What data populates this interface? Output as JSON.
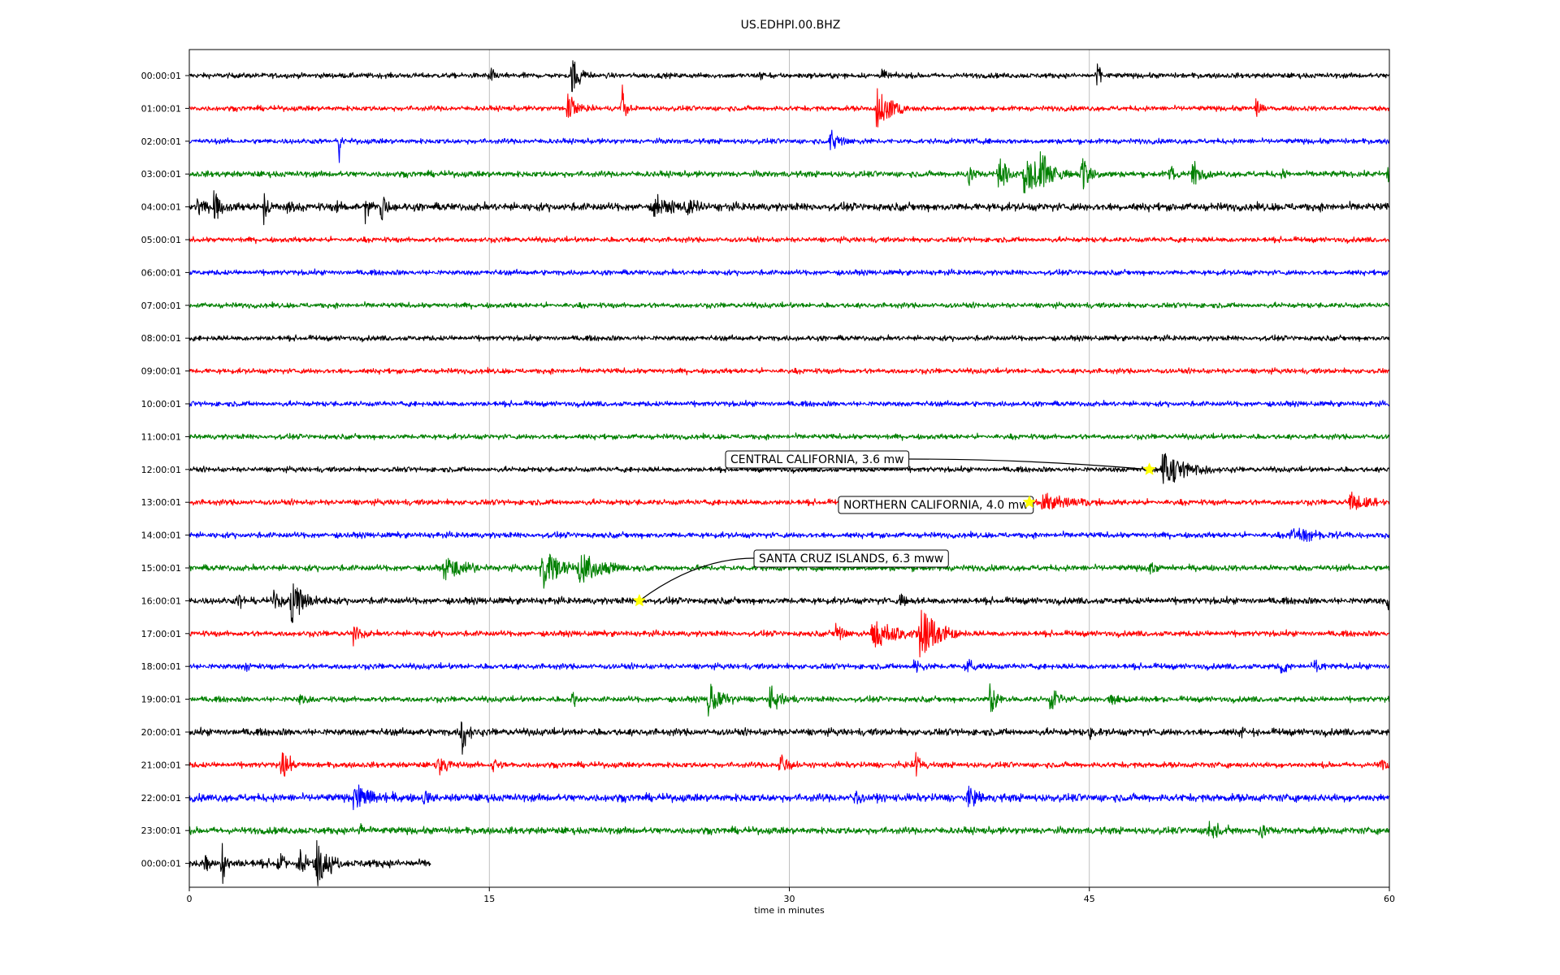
{
  "chart_data": {
    "type": "line",
    "title": "US.EDHPI.00.BHZ",
    "xlabel": "time in minutes",
    "ylabel": "",
    "xlim": [
      0,
      60
    ],
    "xticks": [
      0,
      15,
      30,
      45,
      60
    ],
    "xtick_labels": [
      "0",
      "15",
      "30",
      "45",
      "60"
    ],
    "grid": "vertical",
    "row_colors": [
      "#000000",
      "#ff0000",
      "#0000ff",
      "#008000"
    ],
    "rows": [
      {
        "label": "00:00:01",
        "end_minute": 60,
        "noise": 0.12,
        "events": [
          {
            "t": 15.0,
            "amp": 0.35,
            "dur": 0.2
          },
          {
            "t": 19.1,
            "amp": 0.8,
            "dur": 0.4
          },
          {
            "t": 28.5,
            "amp": 0.25,
            "dur": 0.3
          },
          {
            "t": 34.6,
            "amp": 0.4,
            "dur": 0.2
          },
          {
            "t": 45.4,
            "amp": 1.1,
            "dur": 0.1
          }
        ]
      },
      {
        "label": "01:00:01",
        "end_minute": 60,
        "noise": 0.12,
        "events": [
          {
            "t": 18.9,
            "amp": 0.9,
            "dur": 0.3
          },
          {
            "t": 21.6,
            "amp": 1.1,
            "dur": 0.2
          },
          {
            "t": 34.3,
            "amp": 0.8,
            "dur": 0.8
          },
          {
            "t": 53.3,
            "amp": 0.45,
            "dur": 0.3
          }
        ]
      },
      {
        "label": "02:00:01",
        "end_minute": 60,
        "noise": 0.12,
        "events": [
          {
            "t": 7.5,
            "amp": 0.9,
            "dur": 0.1
          },
          {
            "t": 32.0,
            "amp": 0.45,
            "dur": 0.6
          }
        ]
      },
      {
        "label": "03:00:01",
        "end_minute": 60,
        "noise": 0.14,
        "events": [
          {
            "t": 38.9,
            "amp": 0.6,
            "dur": 0.3
          },
          {
            "t": 40.4,
            "amp": 1.0,
            "dur": 0.4
          },
          {
            "t": 41.7,
            "amp": 0.9,
            "dur": 1.0
          },
          {
            "t": 42.5,
            "amp": 1.1,
            "dur": 0.3
          },
          {
            "t": 44.6,
            "amp": 0.8,
            "dur": 0.4
          },
          {
            "t": 49.0,
            "amp": 0.5,
            "dur": 0.3
          },
          {
            "t": 50.1,
            "amp": 0.65,
            "dur": 0.4
          },
          {
            "t": 54.6,
            "amp": 0.4,
            "dur": 0.2
          },
          {
            "t": 59.9,
            "amp": 0.5,
            "dur": 0.1
          }
        ]
      },
      {
        "label": "04:00:01",
        "end_minute": 60,
        "noise": 0.18,
        "events": [
          {
            "t": 0.4,
            "amp": 0.4,
            "dur": 0.3
          },
          {
            "t": 1.2,
            "amp": 0.8,
            "dur": 0.3
          },
          {
            "t": 3.7,
            "amp": 0.75,
            "dur": 0.2
          },
          {
            "t": 4.9,
            "amp": 0.45,
            "dur": 0.2
          },
          {
            "t": 7.4,
            "amp": 0.3,
            "dur": 0.2
          },
          {
            "t": 8.8,
            "amp": 0.8,
            "dur": 0.2
          },
          {
            "t": 9.6,
            "amp": 0.7,
            "dur": 0.2
          },
          {
            "t": 23.2,
            "amp": 0.45,
            "dur": 1.0
          },
          {
            "t": 24.8,
            "amp": 0.35,
            "dur": 0.6
          }
        ]
      },
      {
        "label": "05:00:01",
        "end_minute": 60,
        "noise": 0.12,
        "events": []
      },
      {
        "label": "06:00:01",
        "end_minute": 60,
        "noise": 0.12,
        "events": []
      },
      {
        "label": "07:00:01",
        "end_minute": 60,
        "noise": 0.12,
        "events": []
      },
      {
        "label": "08:00:01",
        "end_minute": 60,
        "noise": 0.12,
        "events": []
      },
      {
        "label": "09:00:01",
        "end_minute": 60,
        "noise": 0.12,
        "events": []
      },
      {
        "label": "10:00:01",
        "end_minute": 60,
        "noise": 0.12,
        "events": []
      },
      {
        "label": "11:00:01",
        "end_minute": 60,
        "noise": 0.12,
        "events": []
      },
      {
        "label": "12:00:01",
        "end_minute": 60,
        "noise": 0.12,
        "events": [
          {
            "t": 48.6,
            "amp": 0.75,
            "dur": 1.2
          }
        ]
      },
      {
        "label": "13:00:01",
        "end_minute": 60,
        "noise": 0.13,
        "events": [
          {
            "t": 42.6,
            "amp": 0.35,
            "dur": 1.6
          },
          {
            "t": 58.0,
            "amp": 0.4,
            "dur": 0.8
          }
        ]
      },
      {
        "label": "14:00:01",
        "end_minute": 60,
        "noise": 0.13,
        "events": [
          {
            "t": 55.0,
            "amp": 0.25,
            "dur": 2.0
          }
        ]
      },
      {
        "label": "15:00:01",
        "end_minute": 60,
        "noise": 0.14,
        "events": [
          {
            "t": 12.7,
            "amp": 0.5,
            "dur": 1.0
          },
          {
            "t": 17.6,
            "amp": 0.85,
            "dur": 0.8
          },
          {
            "t": 19.3,
            "amp": 0.7,
            "dur": 1.2
          },
          {
            "t": 48.0,
            "amp": 0.3,
            "dur": 0.3
          }
        ]
      },
      {
        "label": "16:00:01",
        "end_minute": 60,
        "noise": 0.15,
        "events": [
          {
            "t": 2.4,
            "amp": 0.45,
            "dur": 0.2
          },
          {
            "t": 4.2,
            "amp": 0.55,
            "dur": 0.3
          },
          {
            "t": 5.1,
            "amp": 0.9,
            "dur": 0.6
          },
          {
            "t": 35.5,
            "amp": 0.35,
            "dur": 0.3
          },
          {
            "t": 59.9,
            "amp": 0.5,
            "dur": 0.1
          }
        ]
      },
      {
        "label": "17:00:01",
        "end_minute": 60,
        "noise": 0.13,
        "events": [
          {
            "t": 8.2,
            "amp": 0.55,
            "dur": 0.3
          },
          {
            "t": 32.3,
            "amp": 0.5,
            "dur": 0.4
          },
          {
            "t": 34.1,
            "amp": 0.6,
            "dur": 1.2
          },
          {
            "t": 36.5,
            "amp": 1.1,
            "dur": 0.8
          }
        ]
      },
      {
        "label": "18:00:01",
        "end_minute": 60,
        "noise": 0.13,
        "events": [
          {
            "t": 2.8,
            "amp": 0.3,
            "dur": 0.2
          },
          {
            "t": 36.2,
            "amp": 0.4,
            "dur": 0.3
          },
          {
            "t": 38.8,
            "amp": 0.45,
            "dur": 0.4
          },
          {
            "t": 54.6,
            "amp": 0.4,
            "dur": 0.3
          },
          {
            "t": 56.2,
            "amp": 0.3,
            "dur": 0.5
          }
        ]
      },
      {
        "label": "19:00:01",
        "end_minute": 60,
        "noise": 0.13,
        "events": [
          {
            "t": 5.5,
            "amp": 0.3,
            "dur": 0.3
          },
          {
            "t": 19.1,
            "amp": 0.35,
            "dur": 0.3
          },
          {
            "t": 25.9,
            "amp": 0.8,
            "dur": 0.6
          },
          {
            "t": 29.0,
            "amp": 0.5,
            "dur": 0.6
          },
          {
            "t": 40.0,
            "amp": 0.65,
            "dur": 0.4
          },
          {
            "t": 43.0,
            "amp": 0.5,
            "dur": 0.4
          },
          {
            "t": 46.0,
            "amp": 0.2,
            "dur": 1.0
          }
        ]
      },
      {
        "label": "20:00:01",
        "end_minute": 60,
        "noise": 0.16,
        "events": [
          {
            "t": 13.6,
            "amp": 0.9,
            "dur": 0.3
          },
          {
            "t": 45.0,
            "amp": 0.35,
            "dur": 0.2
          },
          {
            "t": 52.6,
            "amp": 0.4,
            "dur": 0.2
          }
        ]
      },
      {
        "label": "21:00:01",
        "end_minute": 60,
        "noise": 0.13,
        "events": [
          {
            "t": 4.6,
            "amp": 0.6,
            "dur": 0.4
          },
          {
            "t": 12.4,
            "amp": 0.5,
            "dur": 0.5
          },
          {
            "t": 15.2,
            "amp": 0.3,
            "dur": 0.3
          },
          {
            "t": 29.5,
            "amp": 0.55,
            "dur": 0.4
          },
          {
            "t": 36.3,
            "amp": 0.55,
            "dur": 0.3
          },
          {
            "t": 59.5,
            "amp": 0.25,
            "dur": 0.6
          }
        ]
      },
      {
        "label": "22:00:01",
        "end_minute": 60,
        "noise": 0.18,
        "events": [
          {
            "t": 8.2,
            "amp": 0.55,
            "dur": 1.0
          },
          {
            "t": 11.7,
            "amp": 0.35,
            "dur": 0.3
          },
          {
            "t": 33.2,
            "amp": 0.75,
            "dur": 0.2
          },
          {
            "t": 38.9,
            "amp": 0.4,
            "dur": 0.5
          }
        ]
      },
      {
        "label": "23:00:01",
        "end_minute": 60,
        "noise": 0.16,
        "events": [
          {
            "t": 8.5,
            "amp": 0.3,
            "dur": 0.4
          },
          {
            "t": 50.9,
            "amp": 0.45,
            "dur": 0.6
          },
          {
            "t": 53.5,
            "amp": 0.4,
            "dur": 0.4
          }
        ]
      },
      {
        "label": "00:00:01",
        "end_minute": 12.1,
        "noise": 0.18,
        "events": [
          {
            "t": 0.8,
            "amp": 0.4,
            "dur": 0.2
          },
          {
            "t": 1.6,
            "amp": 1.1,
            "dur": 0.2
          },
          {
            "t": 4.4,
            "amp": 0.6,
            "dur": 0.3
          },
          {
            "t": 5.5,
            "amp": 0.55,
            "dur": 0.3
          },
          {
            "t": 6.3,
            "amp": 1.1,
            "dur": 0.4
          },
          {
            "t": 7.0,
            "amp": 0.45,
            "dur": 0.3
          }
        ]
      }
    ],
    "annotations": [
      {
        "text": "CENTRAL CALIFORNIA, 3.6 mw",
        "row": 12,
        "t": 48.0,
        "box_color": "#ffffff"
      },
      {
        "text": "NORTHERN CALIFORNIA, 4.0 mw",
        "row": 13,
        "t": 42.0,
        "box_color": "#ffffff"
      },
      {
        "text": "SANTA CRUZ ISLANDS, 6.3 mww",
        "row": 16,
        "t": 22.5,
        "box_color": "#ffffff"
      }
    ],
    "marker_color": "#ffff00"
  }
}
